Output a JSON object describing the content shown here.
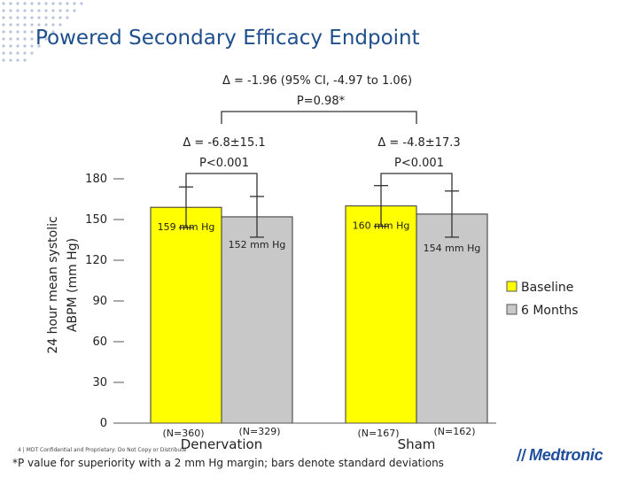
{
  "slide": {
    "title": "Powered Secondary Efficacy Endpoint",
    "footnote": "*P value for superiority with a 2 mm Hg margin; bars denote standard deviations",
    "confidential": "4 | MDT Confidential and Proprietary: Do Not Copy or Distribute",
    "logo_text": "Medtronic"
  },
  "chart_data": {
    "type": "bar",
    "ylabel_line1": "24 hour mean systolic",
    "ylabel_line2": "ABPM (mm Hg)",
    "ylim": [
      0,
      180
    ],
    "yticks": [
      0,
      30,
      60,
      90,
      120,
      150,
      180
    ],
    "categories": [
      "Denervation",
      "Sham"
    ],
    "series": [
      {
        "name": "Baseline",
        "color": "#ffff00",
        "values": [
          159,
          160
        ],
        "sd": [
          15,
          15
        ],
        "labels": [
          "159 mm Hg",
          "160 mm Hg"
        ],
        "n": [
          "(N=360)",
          "(N=167)"
        ]
      },
      {
        "name": "6 Months",
        "color": "#c8c8c8",
        "values": [
          152,
          154
        ],
        "sd": [
          15,
          17
        ],
        "labels": [
          "152 mm Hg",
          "154 mm Hg"
        ],
        "n": [
          "(N=329)",
          "(N=162)"
        ]
      }
    ],
    "group_annotations": [
      {
        "delta": "Δ = -6.8±15.1",
        "p": "P<0.001"
      },
      {
        "delta": "Δ = -4.8±17.3",
        "p": "P<0.001"
      }
    ],
    "between_annotation": {
      "delta": "Δ = -1.96 (95% CI, -4.97 to 1.06)",
      "p": "P=0.98*"
    },
    "legend_position": "right",
    "grid": false
  }
}
